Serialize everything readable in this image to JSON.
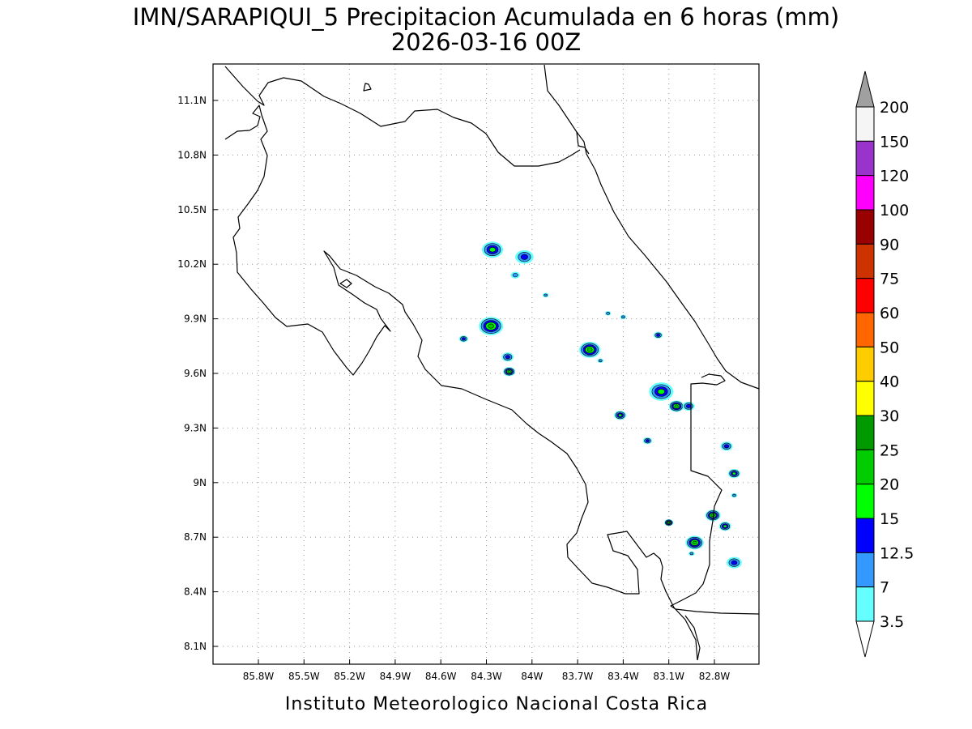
{
  "title": {
    "line1": "IMN/SARAPIQUI_5 Precipitacion Acumulada en 6 horas (mm)",
    "line2": "2026-03-16 00Z"
  },
  "footer": "Instituto Meteorologico Nacional Costa Rica",
  "map": {
    "lon_range": [
      -86.0,
      -82.6
    ],
    "lat_range": [
      8.0,
      11.3
    ],
    "lon_ticks": [
      {
        "value": -85.8,
        "label": "85.8W"
      },
      {
        "value": -85.5,
        "label": "85.5W"
      },
      {
        "value": -85.2,
        "label": "85.2W"
      },
      {
        "value": -84.9,
        "label": "84.9W"
      },
      {
        "value": -84.6,
        "label": "84.6W"
      },
      {
        "value": -84.3,
        "label": "84.3W"
      },
      {
        "value": -84.0,
        "label": "84W"
      },
      {
        "value": -83.7,
        "label": "83.7W"
      },
      {
        "value": -83.4,
        "label": "83.4W"
      },
      {
        "value": -83.1,
        "label": "83.1W"
      },
      {
        "value": -82.8,
        "label": "82.8W"
      }
    ],
    "lat_ticks": [
      {
        "value": 11.1,
        "label": "11.1N"
      },
      {
        "value": 10.8,
        "label": "10.8N"
      },
      {
        "value": 10.5,
        "label": "10.5N"
      },
      {
        "value": 10.2,
        "label": "10.2N"
      },
      {
        "value": 9.9,
        "label": "9.9N"
      },
      {
        "value": 9.6,
        "label": "9.6N"
      },
      {
        "value": 9.3,
        "label": "9.3N"
      },
      {
        "value": 9.0,
        "label": "9N"
      },
      {
        "value": 8.7,
        "label": "8.7N"
      },
      {
        "value": 8.4,
        "label": "8.4N"
      },
      {
        "value": 8.1,
        "label": "8.1N"
      }
    ],
    "grid": true
  },
  "colorbar": {
    "arrows": {
      "top": "#a0a0a0",
      "bottom": "#ffffff"
    },
    "levels": [
      {
        "label": "3.5",
        "color": "#66ffff"
      },
      {
        "label": "7",
        "color": "#3399ff"
      },
      {
        "label": "12.5",
        "color": "#0000ff"
      },
      {
        "label": "15",
        "color": "#00ff00"
      },
      {
        "label": "20",
        "color": "#00cc00"
      },
      {
        "label": "25",
        "color": "#009900"
      },
      {
        "label": "30",
        "color": "#ffff00"
      },
      {
        "label": "40",
        "color": "#ffcc00"
      },
      {
        "label": "50",
        "color": "#ff6600"
      },
      {
        "label": "60",
        "color": "#ff0000"
      },
      {
        "label": "75",
        "color": "#cc3300"
      },
      {
        "label": "90",
        "color": "#990000"
      },
      {
        "label": "100",
        "color": "#ff00ff"
      },
      {
        "label": "120",
        "color": "#9933cc"
      },
      {
        "label": "150",
        "color": "#f5f5f5"
      },
      {
        "label": "200",
        "color": "#f5f5f5"
      }
    ]
  },
  "precip_cells": [
    {
      "lon": -84.26,
      "lat": 10.28,
      "r": 0.07,
      "level": 3
    },
    {
      "lon": -84.05,
      "lat": 10.24,
      "r": 0.06,
      "level": 2
    },
    {
      "lon": -84.11,
      "lat": 10.14,
      "r": 0.03,
      "level": 1
    },
    {
      "lon": -83.91,
      "lat": 10.03,
      "r": 0.02,
      "level": 1
    },
    {
      "lon": -84.27,
      "lat": 9.86,
      "r": 0.08,
      "level": 4
    },
    {
      "lon": -84.45,
      "lat": 9.79,
      "r": 0.03,
      "level": 2
    },
    {
      "lon": -84.16,
      "lat": 9.69,
      "r": 0.04,
      "level": 2
    },
    {
      "lon": -84.15,
      "lat": 9.61,
      "r": 0.04,
      "level": 4
    },
    {
      "lon": -83.62,
      "lat": 9.73,
      "r": 0.07,
      "level": 4
    },
    {
      "lon": -83.55,
      "lat": 9.67,
      "r": 0.02,
      "level": 1
    },
    {
      "lon": -83.4,
      "lat": 9.91,
      "r": 0.02,
      "level": 1
    },
    {
      "lon": -83.17,
      "lat": 9.81,
      "r": 0.03,
      "level": 2
    },
    {
      "lon": -83.5,
      "lat": 9.93,
      "r": 0.02,
      "level": 1
    },
    {
      "lon": -83.15,
      "lat": 9.5,
      "r": 0.08,
      "level": 3
    },
    {
      "lon": -83.05,
      "lat": 9.42,
      "r": 0.05,
      "level": 4
    },
    {
      "lon": -82.97,
      "lat": 9.42,
      "r": 0.04,
      "level": 2
    },
    {
      "lon": -83.42,
      "lat": 9.37,
      "r": 0.04,
      "level": 3
    },
    {
      "lon": -83.24,
      "lat": 9.23,
      "r": 0.03,
      "level": 2
    },
    {
      "lon": -82.72,
      "lat": 9.2,
      "r": 0.04,
      "level": 2
    },
    {
      "lon": -82.67,
      "lat": 9.05,
      "r": 0.04,
      "level": 3
    },
    {
      "lon": -82.67,
      "lat": 8.93,
      "r": 0.02,
      "level": 1
    },
    {
      "lon": -82.81,
      "lat": 8.82,
      "r": 0.05,
      "level": 4
    },
    {
      "lon": -82.73,
      "lat": 8.76,
      "r": 0.04,
      "level": 3
    },
    {
      "lon": -83.1,
      "lat": 8.78,
      "r": 0.03,
      "level": 4
    },
    {
      "lon": -82.93,
      "lat": 8.67,
      "r": 0.06,
      "level": 4
    },
    {
      "lon": -82.67,
      "lat": 8.56,
      "r": 0.05,
      "level": 2
    },
    {
      "lon": -82.95,
      "lat": 8.61,
      "r": 0.02,
      "level": 1
    }
  ]
}
